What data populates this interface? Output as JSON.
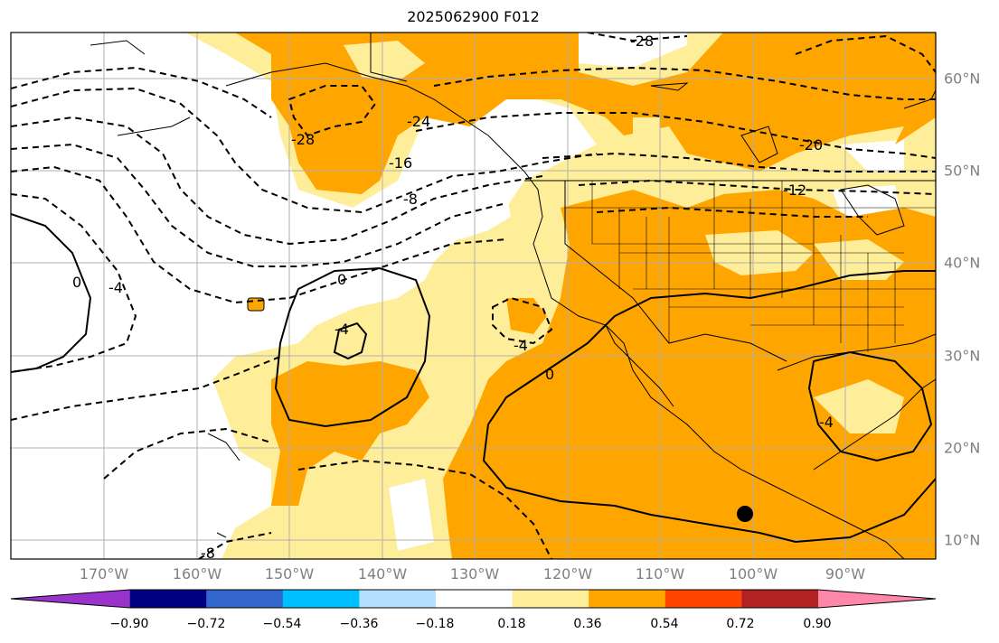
{
  "title": "2025062900 F012",
  "map": {
    "lon_labels": [
      "170°W",
      "160°W",
      "150°W",
      "140°W",
      "130°W",
      "120°W",
      "110°W",
      "100°W",
      "90°W"
    ],
    "lat_labels": [
      "60°N",
      "50°N",
      "40°N",
      "30°N",
      "20°N",
      "10°N"
    ],
    "contour_labels": [
      "-28",
      "-24",
      "-28",
      "-20",
      "-16",
      "-8",
      "-12",
      "0",
      "-4",
      "0",
      "-4",
      "-4",
      "0",
      "-4",
      "-8"
    ],
    "fill_colors": {
      "light_yellow": "#ffee99",
      "orange": "#ffa500",
      "land_line": "#000000",
      "grid": "#b0b0b0"
    }
  },
  "colorbar": {
    "colors": [
      "#9933cc",
      "#000080",
      "#3366cc",
      "#00bfff",
      "#b3e0ff",
      "#ffffff",
      "#ffee99",
      "#ffa500",
      "#ff4500",
      "#b22222",
      "#ff88aa"
    ],
    "labels": [
      "−0.90",
      "−0.72",
      "−0.54",
      "−0.36",
      "−0.18",
      "0.18",
      "0.36",
      "0.54",
      "0.72",
      "0.90"
    ]
  }
}
